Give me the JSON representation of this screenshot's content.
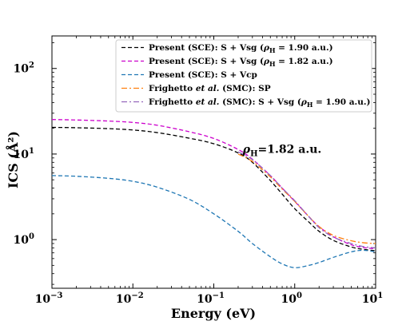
{
  "chart_data": {
    "type": "line",
    "xscale": "log",
    "yscale": "log",
    "xlim": [
      0.001,
      10
    ],
    "ylim": [
      0.27,
      240
    ],
    "xlabel": "Energy (eV)",
    "ylabel": "ICS (Å²)",
    "x_ticks": [
      {
        "value": 0.001,
        "base": "10",
        "exp": "−3"
      },
      {
        "value": 0.01,
        "base": "10",
        "exp": "−2"
      },
      {
        "value": 0.1,
        "base": "10",
        "exp": "−1"
      },
      {
        "value": 1,
        "base": "10",
        "exp": "0"
      },
      {
        "value": 10,
        "base": "10",
        "exp": "1"
      }
    ],
    "y_ticks": [
      {
        "value": 1,
        "base": "10",
        "exp": "0"
      },
      {
        "value": 10,
        "base": "10",
        "exp": "1"
      },
      {
        "value": 100,
        "base": "10",
        "exp": "2"
      }
    ],
    "annotation": {
      "text": "ρH=1.82 a.u.",
      "x": 0.25,
      "y": 11.5
    },
    "legend_position": "top-right",
    "grid": false,
    "series": [
      {
        "name": "Present (SCE): S + Vsg (ρH = 1.90 a.u.)",
        "color": "#000000",
        "dash": "5,3",
        "x": [
          0.001,
          0.002,
          0.005,
          0.01,
          0.02,
          0.05,
          0.1,
          0.2,
          0.3,
          0.5,
          0.7,
          1.0,
          1.5,
          2.0,
          3.0,
          5.0,
          7.0,
          10.0
        ],
        "y": [
          20.5,
          20.3,
          19.8,
          19.1,
          17.8,
          15.3,
          13.2,
          10.3,
          8.0,
          4.9,
          3.4,
          2.3,
          1.6,
          1.25,
          0.98,
          0.82,
          0.77,
          0.74
        ]
      },
      {
        "name": "Present (SCE): S + Vsg (ρH = 1.82 a.u.)",
        "color": "#cc00cc",
        "dash": "5,3",
        "x": [
          0.001,
          0.002,
          0.005,
          0.01,
          0.02,
          0.05,
          0.1,
          0.2,
          0.3,
          0.5,
          0.7,
          1.0,
          1.5,
          2.0,
          3.0,
          5.0,
          7.0,
          10.0
        ],
        "y": [
          25.3,
          25.0,
          24.3,
          23.4,
          21.7,
          18.2,
          15.2,
          11.3,
          8.7,
          5.6,
          4.0,
          2.8,
          1.85,
          1.42,
          1.08,
          0.87,
          0.81,
          0.78
        ]
      },
      {
        "name": "Present (SCE): S + Vcp",
        "color": "#1f77b4",
        "dash": "5,3",
        "x": [
          0.001,
          0.002,
          0.005,
          0.01,
          0.02,
          0.05,
          0.1,
          0.2,
          0.3,
          0.5,
          0.7,
          1.0,
          1.5,
          2.0,
          3.0,
          5.0,
          7.0,
          10.0
        ],
        "y": [
          5.6,
          5.5,
          5.2,
          4.8,
          4.1,
          2.95,
          2.0,
          1.25,
          0.9,
          0.63,
          0.52,
          0.47,
          0.5,
          0.54,
          0.62,
          0.72,
          0.75,
          0.72
        ]
      },
      {
        "name": "Frighetto et al. (SMC): SP",
        "color": "#ff7f0e",
        "dash": "7,3,2,3",
        "x": [
          0.2,
          0.3,
          0.5,
          0.7,
          1.0,
          1.5,
          2.0,
          3.0,
          5.0,
          7.0,
          10.0
        ],
        "y": [
          10.0,
          8.2,
          5.4,
          3.9,
          2.8,
          1.85,
          1.42,
          1.12,
          0.97,
          0.92,
          0.9
        ]
      },
      {
        "name": "Frighetto et al. (SMC): S + Vsg (ρH = 1.90 a.u.)",
        "color": "#9467bd",
        "dash": "7,3,2,3",
        "x": [
          0.2,
          0.3,
          0.5,
          0.7,
          1.0,
          1.5,
          2.0,
          3.0,
          5.0,
          7.0,
          10.0
        ],
        "y": [
          10.6,
          8.6,
          5.6,
          4.0,
          2.85,
          1.85,
          1.38,
          1.07,
          0.9,
          0.83,
          0.8
        ]
      }
    ]
  }
}
